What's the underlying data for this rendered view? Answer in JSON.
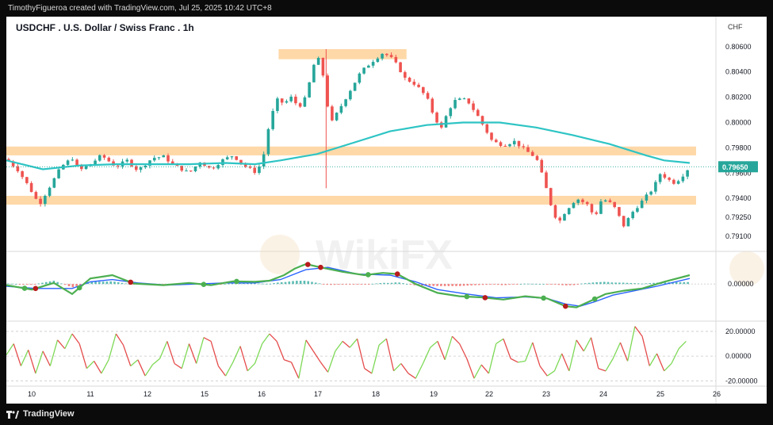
{
  "header": {
    "credit": "TimothyFigueroa created with TradingView.com, Jul 25, 2025 10:42 UTC+8"
  },
  "footer": {
    "brand": "TradingView",
    "logo_icon": "tradingview-logo-icon"
  },
  "watermark": "WikiFX",
  "colors": {
    "up": "#26a69a",
    "down": "#ef5350",
    "ma": "#2ec4c4",
    "zone": "#ffd8a8",
    "macd_fast": "#4caf50",
    "macd_slow": "#2962ff",
    "rsi_up": "#7ed957",
    "rsi_down": "#e54b4b"
  },
  "chart_data": [
    {
      "type": "candlestick",
      "title": "USDCHF . U.S. Dollar / Swiss Franc . 1h",
      "currency_label": "CHF",
      "last_price": "0.79650",
      "y_ticks": [
        "0.80600",
        "0.80400",
        "0.80200",
        "0.80000",
        "0.79800",
        "0.79600",
        "0.79400",
        "0.79250",
        "0.79100"
      ],
      "ylim": [
        0.7905,
        0.8068
      ],
      "x_ticks": [
        "10",
        "11",
        "12",
        "15",
        "16",
        "17",
        "18",
        "19",
        "22",
        "23",
        "24",
        "25",
        "26"
      ],
      "zones": [
        {
          "from": 0.805,
          "to": 0.8058
        },
        {
          "from": 0.7974,
          "to": 0.7981
        },
        {
          "from": 0.7935,
          "to": 0.7942
        }
      ],
      "close_path": [
        [
          0.0,
          0.7971
        ],
        [
          0.3,
          0.7963
        ],
        [
          0.6,
          0.795
        ],
        [
          0.9,
          0.7935
        ],
        [
          1.1,
          0.7945
        ],
        [
          1.3,
          0.7955
        ],
        [
          1.5,
          0.7965
        ],
        [
          1.8,
          0.7972
        ],
        [
          2.0,
          0.7962
        ],
        [
          2.3,
          0.7967
        ],
        [
          2.6,
          0.7974
        ],
        [
          3.0,
          0.7965
        ],
        [
          3.3,
          0.797
        ],
        [
          3.6,
          0.7962
        ],
        [
          4.0,
          0.7972
        ],
        [
          4.3,
          0.7973
        ],
        [
          4.6,
          0.7966
        ],
        [
          5.0,
          0.796
        ],
        [
          5.3,
          0.7969
        ],
        [
          5.6,
          0.7963
        ],
        [
          5.9,
          0.797
        ],
        [
          6.2,
          0.7974
        ],
        [
          6.5,
          0.7966
        ],
        [
          6.8,
          0.7961
        ],
        [
          7.0,
          0.7968
        ],
        [
          7.2,
          0.8
        ],
        [
          7.4,
          0.8018
        ],
        [
          7.6,
          0.8015
        ],
        [
          7.8,
          0.802
        ],
        [
          8.0,
          0.8012
        ],
        [
          8.2,
          0.802
        ],
        [
          8.4,
          0.8045
        ],
        [
          8.6,
          0.8052
        ],
        [
          8.75,
          0.8018
        ],
        [
          8.9,
          0.8
        ],
        [
          9.1,
          0.801
        ],
        [
          9.4,
          0.8025
        ],
        [
          9.7,
          0.804
        ],
        [
          10.0,
          0.8048
        ],
        [
          10.3,
          0.8055
        ],
        [
          10.5,
          0.8052
        ],
        [
          10.7,
          0.8045
        ],
        [
          10.9,
          0.8035
        ],
        [
          11.2,
          0.803
        ],
        [
          11.5,
          0.802
        ],
        [
          11.7,
          0.8005
        ],
        [
          11.9,
          0.7995
        ],
        [
          12.1,
          0.801
        ],
        [
          12.3,
          0.8018
        ],
        [
          12.6,
          0.8018
        ],
        [
          12.9,
          0.8005
        ],
        [
          13.1,
          0.7995
        ],
        [
          13.3,
          0.7985
        ],
        [
          13.6,
          0.7982
        ],
        [
          13.9,
          0.7985
        ],
        [
          14.2,
          0.7978
        ],
        [
          14.5,
          0.7972
        ],
        [
          14.7,
          0.7955
        ],
        [
          14.9,
          0.7935
        ],
        [
          15.1,
          0.792
        ],
        [
          15.3,
          0.793
        ],
        [
          15.6,
          0.794
        ],
        [
          15.9,
          0.7935
        ],
        [
          16.1,
          0.7925
        ],
        [
          16.3,
          0.794
        ],
        [
          16.6,
          0.7935
        ],
        [
          16.9,
          0.7918
        ],
        [
          17.1,
          0.7928
        ],
        [
          17.4,
          0.7938
        ],
        [
          17.7,
          0.7948
        ],
        [
          17.9,
          0.796
        ],
        [
          18.1,
          0.7955
        ],
        [
          18.3,
          0.7952
        ],
        [
          18.5,
          0.7958
        ],
        [
          18.7,
          0.7965
        ]
      ],
      "ma_path": [
        [
          0.0,
          0.797
        ],
        [
          1.0,
          0.7963
        ],
        [
          2.0,
          0.7966
        ],
        [
          3.0,
          0.7967
        ],
        [
          4.0,
          0.7967
        ],
        [
          5.0,
          0.7967
        ],
        [
          6.0,
          0.7968
        ],
        [
          6.8,
          0.7967
        ],
        [
          7.5,
          0.797
        ],
        [
          8.5,
          0.7975
        ],
        [
          9.5,
          0.7984
        ],
        [
          10.5,
          0.7993
        ],
        [
          11.5,
          0.7998
        ],
        [
          12.5,
          0.8
        ],
        [
          13.5,
          0.8
        ],
        [
          14.5,
          0.7996
        ],
        [
          15.5,
          0.799
        ],
        [
          16.5,
          0.7983
        ],
        [
          17.5,
          0.7974
        ],
        [
          18.0,
          0.797
        ],
        [
          18.7,
          0.7968
        ]
      ]
    },
    {
      "type": "line",
      "y_ticks": [
        "0.00000"
      ],
      "ylim": [
        -1.6,
        1.4
      ],
      "fast": [
        [
          0.0,
          -0.05
        ],
        [
          0.7,
          -0.25
        ],
        [
          1.3,
          0.05
        ],
        [
          1.8,
          -0.45
        ],
        [
          2.3,
          0.25
        ],
        [
          2.9,
          0.4
        ],
        [
          3.5,
          0.02
        ],
        [
          4.3,
          -0.05
        ],
        [
          5.0,
          0.05
        ],
        [
          5.6,
          -0.05
        ],
        [
          6.2,
          0.12
        ],
        [
          6.8,
          0.1
        ],
        [
          7.2,
          0.15
        ],
        [
          7.6,
          0.4
        ],
        [
          7.9,
          0.7
        ],
        [
          8.2,
          0.9
        ],
        [
          8.6,
          0.75
        ],
        [
          9.2,
          0.55
        ],
        [
          9.8,
          0.4
        ],
        [
          10.3,
          0.5
        ],
        [
          10.7,
          0.45
        ],
        [
          11.2,
          0.0
        ],
        [
          11.8,
          -0.4
        ],
        [
          12.4,
          -0.55
        ],
        [
          13.0,
          -0.6
        ],
        [
          13.6,
          -0.7
        ],
        [
          14.2,
          -0.55
        ],
        [
          14.8,
          -0.65
        ],
        [
          15.3,
          -1.0
        ],
        [
          15.6,
          -1.05
        ],
        [
          16.0,
          -0.75
        ],
        [
          16.4,
          -0.45
        ],
        [
          16.9,
          -0.3
        ],
        [
          17.4,
          -0.2
        ],
        [
          18.0,
          0.1
        ],
        [
          18.7,
          0.4
        ]
      ],
      "slow": [
        [
          0.0,
          -0.1
        ],
        [
          0.8,
          -0.2
        ],
        [
          1.8,
          -0.2
        ],
        [
          2.3,
          0.1
        ],
        [
          2.9,
          0.2
        ],
        [
          3.6,
          0.05
        ],
        [
          4.4,
          -0.05
        ],
        [
          5.2,
          0.0
        ],
        [
          6.0,
          0.05
        ],
        [
          6.8,
          0.05
        ],
        [
          7.5,
          0.2
        ],
        [
          8.2,
          0.65
        ],
        [
          8.8,
          0.75
        ],
        [
          9.6,
          0.45
        ],
        [
          10.5,
          0.4
        ],
        [
          11.2,
          0.1
        ],
        [
          11.8,
          -0.25
        ],
        [
          12.6,
          -0.45
        ],
        [
          13.4,
          -0.62
        ],
        [
          14.2,
          -0.58
        ],
        [
          14.8,
          -0.65
        ],
        [
          15.3,
          -0.9
        ],
        [
          15.7,
          -1.0
        ],
        [
          16.1,
          -0.8
        ],
        [
          16.6,
          -0.5
        ],
        [
          17.2,
          -0.3
        ],
        [
          17.8,
          -0.1
        ],
        [
          18.7,
          0.25
        ]
      ],
      "cross_up": [
        0.5,
        2.0,
        5.4,
        6.3,
        9.9,
        12.6,
        14.7,
        16.1
      ],
      "cross_down": [
        0.8,
        3.4,
        8.25,
        8.6,
        10.7,
        13.1,
        15.3
      ]
    },
    {
      "type": "line",
      "y_ticks": [
        "20.00000",
        "0.00000",
        "-20.00000"
      ],
      "ylim": [
        -23,
        27
      ],
      "series": [
        [
          0.0,
          1
        ],
        [
          0.2,
          10
        ],
        [
          0.4,
          -8
        ],
        [
          0.6,
          5
        ],
        [
          0.8,
          -14
        ],
        [
          1.0,
          4
        ],
        [
          1.2,
          -8
        ],
        [
          1.4,
          13
        ],
        [
          1.6,
          6
        ],
        [
          1.8,
          18
        ],
        [
          2.0,
          10
        ],
        [
          2.2,
          -10
        ],
        [
          2.4,
          -4
        ],
        [
          2.6,
          -14
        ],
        [
          2.8,
          -3
        ],
        [
          3.0,
          18
        ],
        [
          3.2,
          9
        ],
        [
          3.4,
          -8
        ],
        [
          3.6,
          -3
        ],
        [
          3.8,
          -16
        ],
        [
          4.0,
          -7
        ],
        [
          4.2,
          -2
        ],
        [
          4.4,
          12
        ],
        [
          4.6,
          -6
        ],
        [
          4.8,
          -10
        ],
        [
          5.0,
          10
        ],
        [
          5.2,
          -6
        ],
        [
          5.4,
          15
        ],
        [
          5.6,
          12
        ],
        [
          5.8,
          -8
        ],
        [
          6.0,
          -16
        ],
        [
          6.2,
          -5
        ],
        [
          6.4,
          8
        ],
        [
          6.6,
          -12
        ],
        [
          6.8,
          -6
        ],
        [
          7.0,
          10
        ],
        [
          7.2,
          18
        ],
        [
          7.4,
          12
        ],
        [
          7.6,
          -3
        ],
        [
          7.8,
          -5
        ],
        [
          8.0,
          -18
        ],
        [
          8.2,
          13
        ],
        [
          8.4,
          4
        ],
        [
          8.6,
          -5
        ],
        [
          8.8,
          -13
        ],
        [
          9.0,
          4
        ],
        [
          9.2,
          12
        ],
        [
          9.4,
          7
        ],
        [
          9.6,
          14
        ],
        [
          9.8,
          -10
        ],
        [
          10.0,
          -14
        ],
        [
          10.2,
          9
        ],
        [
          10.4,
          14
        ],
        [
          10.6,
          -12
        ],
        [
          10.8,
          -6
        ],
        [
          11.0,
          -14
        ],
        [
          11.2,
          -18
        ],
        [
          11.4,
          -6
        ],
        [
          11.6,
          7
        ],
        [
          11.8,
          12
        ],
        [
          12.0,
          -3
        ],
        [
          12.2,
          16
        ],
        [
          12.4,
          10
        ],
        [
          12.6,
          -2
        ],
        [
          12.8,
          -18
        ],
        [
          13.0,
          -7
        ],
        [
          13.2,
          -14
        ],
        [
          13.4,
          10
        ],
        [
          13.6,
          14
        ],
        [
          13.8,
          -2
        ],
        [
          14.0,
          -5
        ],
        [
          14.2,
          -4
        ],
        [
          14.4,
          11
        ],
        [
          14.6,
          -8
        ],
        [
          14.8,
          -16
        ],
        [
          15.0,
          -12
        ],
        [
          15.2,
          2
        ],
        [
          15.4,
          -12
        ],
        [
          15.6,
          13
        ],
        [
          15.8,
          4
        ],
        [
          16.0,
          15
        ],
        [
          16.2,
          -10
        ],
        [
          16.4,
          -12
        ],
        [
          16.6,
          -2
        ],
        [
          16.8,
          11
        ],
        [
          17.0,
          -4
        ],
        [
          17.2,
          24
        ],
        [
          17.4,
          16
        ],
        [
          17.6,
          -8
        ],
        [
          17.8,
          2
        ],
        [
          18.0,
          -12
        ],
        [
          18.2,
          -6
        ],
        [
          18.4,
          6
        ],
        [
          18.6,
          12
        ]
      ]
    }
  ]
}
